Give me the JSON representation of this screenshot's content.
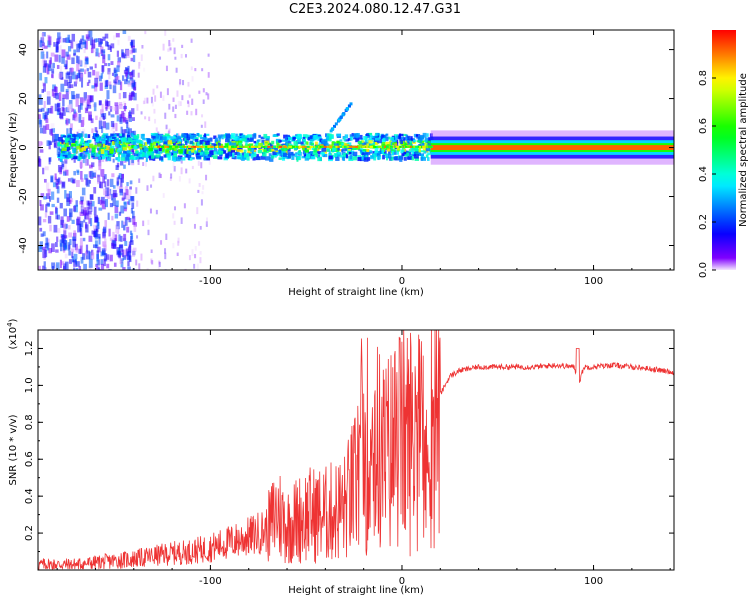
{
  "title": "C2E3.2024.080.12.47.G31",
  "chart_data": [
    {
      "type": "heatmap",
      "xlabel": "Height of straight line (km)",
      "ylabel": "Frequency (Hz)",
      "xlim": [
        -190,
        142
      ],
      "ylim": [
        -50,
        48
      ],
      "xticks": [
        -100,
        0,
        100
      ],
      "xtick_labels": [
        "-100",
        "0",
        "100"
      ],
      "yticks": [
        -40,
        -20,
        0,
        20,
        40
      ],
      "ytick_labels": [
        "-40",
        "-20",
        "0",
        "20",
        "40"
      ],
      "colorbar": {
        "label": "Normalized spectral amplitude",
        "range": [
          0.0,
          1.0
        ],
        "ticks": [
          0.0,
          0.2,
          0.4,
          0.6,
          0.8
        ],
        "tick_labels": [
          "0.0",
          "0.2",
          "0.4",
          "0.6",
          "0.8"
        ]
      },
      "features": {
        "carrier_frequency_hz": 0,
        "scatter_region_km": [
          -190,
          -140
        ],
        "turbulent_band_km": [
          -140,
          15
        ],
        "steady_carrier_km": [
          15,
          142
        ],
        "weak_drift_line": {
          "x_km": [
            -40,
            -25
          ],
          "freq_hz": [
            5,
            21
          ]
        }
      }
    },
    {
      "type": "line",
      "xlabel": "Height of straight line (km)",
      "ylabel": "SNR (10 * v/v)",
      "y_scale_label": "(x10",
      "y_scale_exp": "4",
      "y_unit_multiplier": 10000,
      "xlim": [
        -190,
        142
      ],
      "ylim": [
        0.0,
        1.3
      ],
      "xticks": [
        -100,
        0,
        100
      ],
      "xtick_labels": [
        "-100",
        "0",
        "100"
      ],
      "yticks": [
        0.2,
        0.4,
        0.6,
        0.8,
        1.0,
        1.2
      ],
      "ytick_labels": [
        "0.2",
        "0.4",
        "0.6",
        "0.8",
        "1.0",
        "1.2"
      ],
      "series": [
        {
          "name": "SNR",
          "color": "#ee3333",
          "x": [
            -190,
            -170,
            -150,
            -140,
            -120,
            -110,
            -100,
            -90,
            -80,
            -70,
            -65,
            -60,
            -50,
            -40,
            -30,
            -25,
            -20,
            -15,
            -10,
            -5,
            0,
            5,
            10,
            13,
            15,
            20,
            25,
            30,
            40,
            50,
            60,
            70,
            80,
            90,
            92,
            95,
            100,
            110,
            120,
            130,
            142
          ],
          "y": [
            0.03,
            0.03,
            0.05,
            0.06,
            0.09,
            0.1,
            0.12,
            0.15,
            0.18,
            0.22,
            0.32,
            0.24,
            0.3,
            0.3,
            0.34,
            0.45,
            0.65,
            0.72,
            0.6,
            0.66,
            0.72,
            0.72,
            0.8,
            0.45,
            0.82,
            0.95,
            1.05,
            1.08,
            1.1,
            1.1,
            1.1,
            1.1,
            1.11,
            1.1,
            1.0,
            1.1,
            1.1,
            1.11,
            1.1,
            1.09,
            1.07
          ]
        }
      ]
    }
  ]
}
